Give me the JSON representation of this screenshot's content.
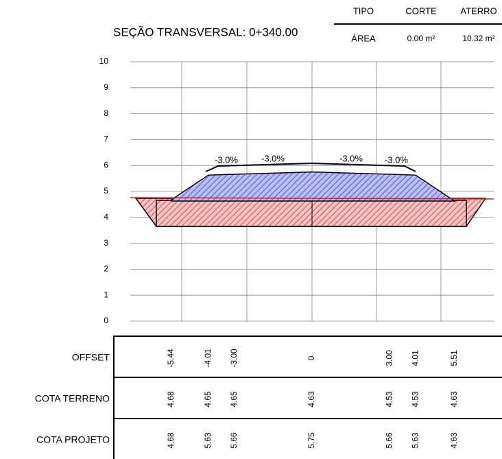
{
  "summary": {
    "headers": [
      "TIPO",
      "CORTE",
      "ATERRO"
    ],
    "row": [
      "ÁREA",
      "0.00 m²",
      "10.32 m²"
    ]
  },
  "title": "SEÇÃO TRANSVERSAL: 0+340.00",
  "yticks": [
    "0",
    "1",
    "2",
    "3",
    "4",
    "5",
    "6",
    "7",
    "8",
    "9",
    "10"
  ],
  "slopes": [
    "-3.0%",
    "-3.0%",
    "-3.0%",
    "-3.0%"
  ],
  "table": {
    "rows": [
      {
        "label": "OFFSET",
        "values": [
          "-5.44",
          "-4.01",
          "-3.00",
          "0",
          "3.00",
          "4.01",
          "5.51"
        ]
      },
      {
        "label": "COTA TERRENO",
        "values": [
          "4.68",
          "4.65",
          "4.65",
          "4.63",
          "4.53",
          "4.53",
          "4.63"
        ]
      },
      {
        "label": "COTA PROJETO",
        "values": [
          "4.68",
          "5.63",
          "5.66",
          "5.75",
          "5.66",
          "5.63",
          "4.63"
        ]
      }
    ]
  }
}
